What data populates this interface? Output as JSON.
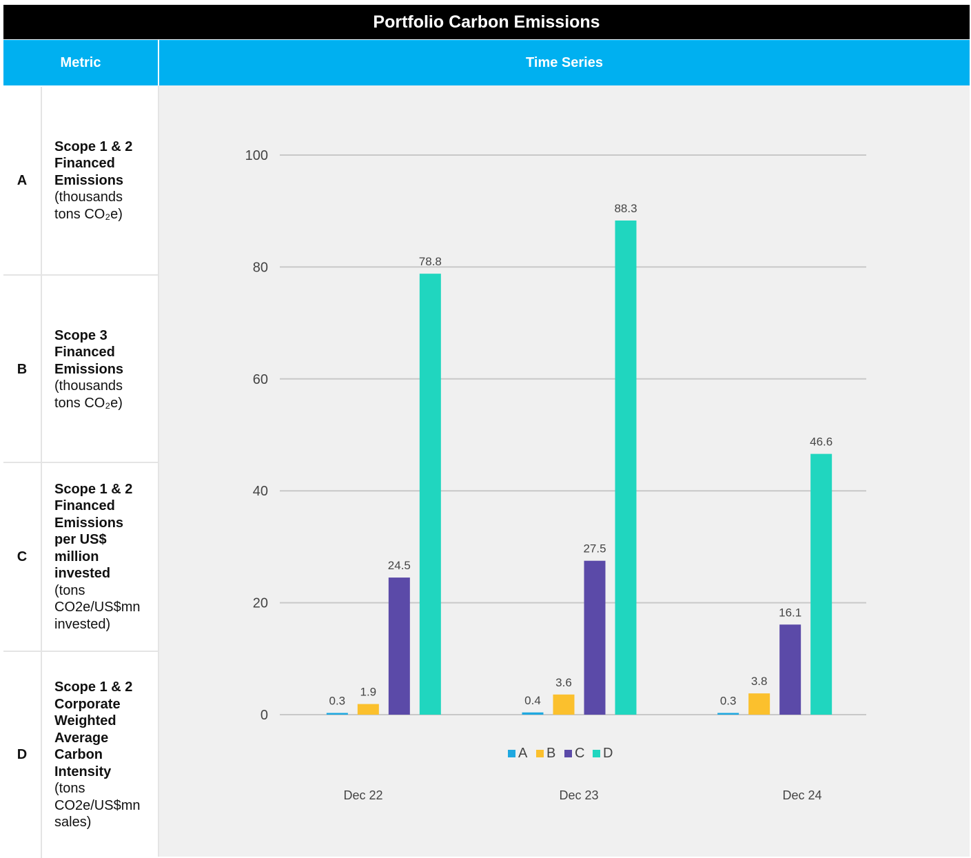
{
  "title": "Portfolio Carbon Emissions",
  "header": {
    "metric": "Metric",
    "time_series": "Time Series"
  },
  "metrics": [
    {
      "letter": "A",
      "bold_lines": [
        "Scope 1 & 2",
        "Financed",
        "Emissions"
      ],
      "plain_lines": [
        "(thousands",
        "tons CO₂e)"
      ]
    },
    {
      "letter": "B",
      "bold_lines": [
        "Scope 3",
        "Financed",
        "Emissions"
      ],
      "plain_lines": [
        "(thousands",
        "tons CO₂e)"
      ]
    },
    {
      "letter": "C",
      "bold_lines": [
        "Scope 1 & 2",
        "Financed",
        "Emissions",
        "per US$",
        "million",
        "invested"
      ],
      "plain_lines": [
        "(tons",
        "CO2e/US$mn",
        "invested)"
      ]
    },
    {
      "letter": "D",
      "bold_lines": [
        "Scope 1 & 2",
        "Corporate",
        "Weighted",
        "Average",
        "Carbon",
        "Intensity"
      ],
      "plain_lines": [
        "(tons",
        "CO2e/US$mn",
        "sales)"
      ]
    }
  ],
  "chart_data": {
    "type": "bar",
    "categories": [
      "Dec 22",
      "Dec 23",
      "Dec 24"
    ],
    "series": [
      {
        "name": "A",
        "values": [
          0.3,
          0.4,
          0.3
        ],
        "color": "#1fa8e0"
      },
      {
        "name": "B",
        "values": [
          1.9,
          3.6,
          3.8
        ],
        "color": "#fbc02d"
      },
      {
        "name": "C",
        "values": [
          24.5,
          27.5,
          16.1
        ],
        "color": "#5b4aa8"
      },
      {
        "name": "D",
        "values": [
          78.8,
          88.3,
          46.6
        ],
        "color": "#20d6bf"
      }
    ],
    "data_labels": [
      [
        "0.3",
        "0.4",
        "0.3"
      ],
      [
        "1.9",
        "3.6",
        "3.8"
      ],
      [
        "24.5",
        "27.5",
        "16.1"
      ],
      [
        "78.8",
        "88.3",
        "46.6"
      ]
    ],
    "ylim": [
      0,
      100
    ],
    "yticks": [
      "0",
      "20",
      "40",
      "60",
      "80",
      "100"
    ],
    "ytick_values": [
      0,
      20,
      40,
      60,
      80,
      100
    ],
    "grid": true,
    "legend": "below plot, centered",
    "title": "",
    "xlabel": "",
    "ylabel": ""
  }
}
